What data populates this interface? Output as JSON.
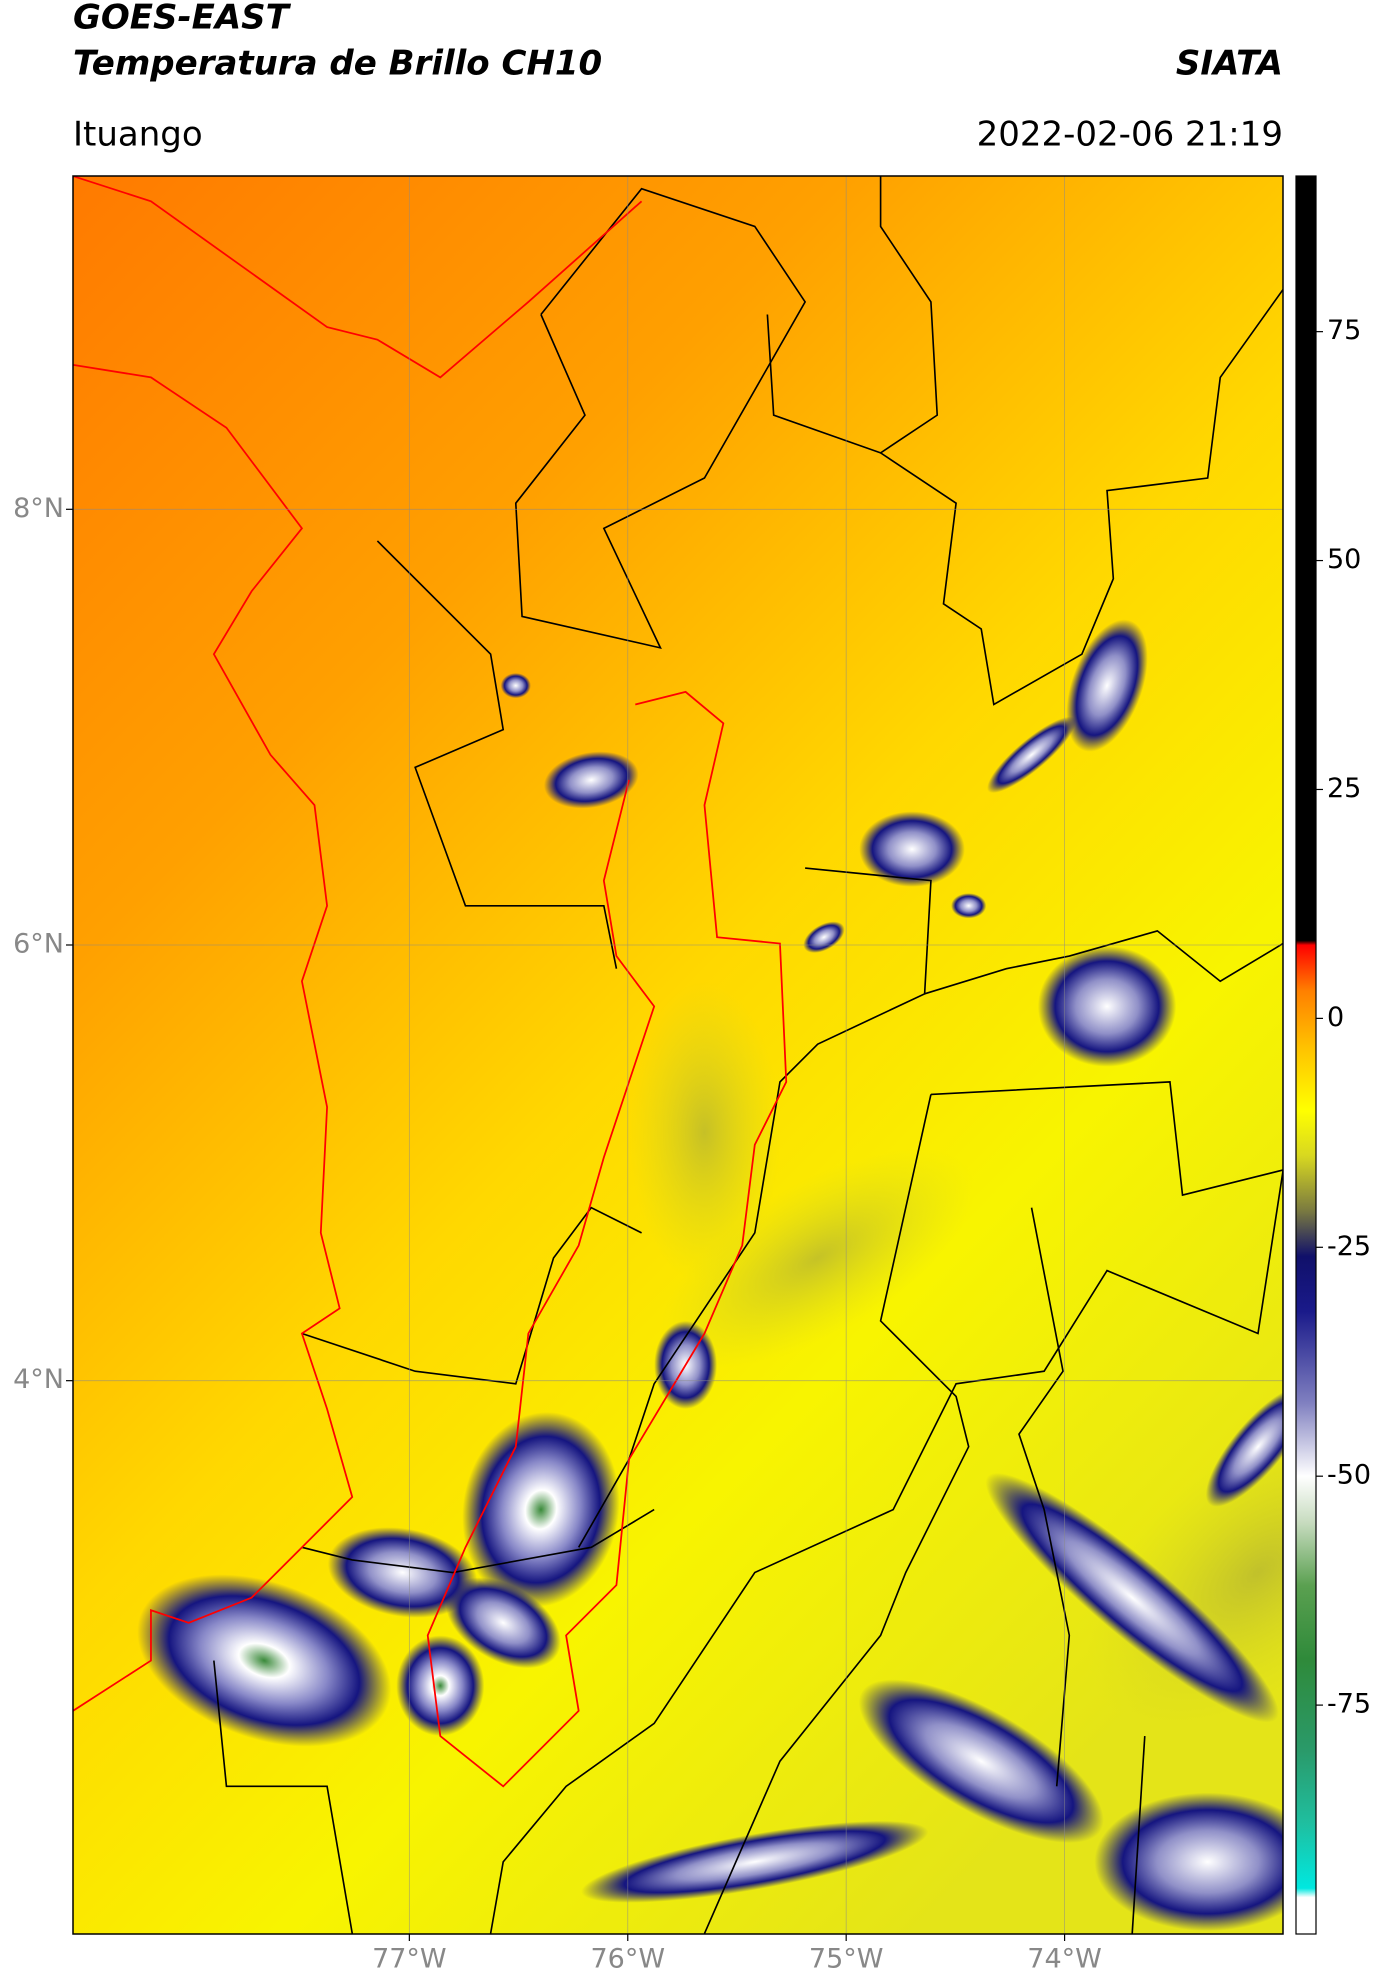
{
  "header": {
    "title": "GOES-EAST",
    "subtitle": "Temperatura de Brillo CH10",
    "brand": "SIATA",
    "location": "Ituango",
    "datetime": "2022-02-06 21:19"
  },
  "map": {
    "xlim": [
      -78.54,
      -73.0
    ],
    "ylim": [
      1.46,
      9.53
    ],
    "xticks": [
      {
        "value": -77,
        "label": "77°W"
      },
      {
        "value": -76,
        "label": "76°W"
      },
      {
        "value": -75,
        "label": "75°W"
      },
      {
        "value": -74,
        "label": "74°W"
      }
    ],
    "yticks": [
      {
        "value": 8,
        "label": "8°N"
      },
      {
        "value": 6,
        "label": "6°N"
      },
      {
        "value": 4,
        "label": "4°N"
      }
    ],
    "grid": true
  },
  "colorbar": {
    "lim": [
      -100,
      92
    ],
    "ticks": [
      75,
      50,
      25,
      0,
      -25,
      -50,
      -75
    ],
    "stops": [
      {
        "value": -100,
        "color": "#ffffff"
      },
      {
        "value": -96,
        "color": "#ffffff"
      },
      {
        "value": -95,
        "color": "#00e8e0"
      },
      {
        "value": -88,
        "color": "#1fbfa0"
      },
      {
        "value": -80,
        "color": "#2a9a6a"
      },
      {
        "value": -70,
        "color": "#2f8a3a"
      },
      {
        "value": -62,
        "color": "#5aa050"
      },
      {
        "value": -55,
        "color": "#c8dcc0"
      },
      {
        "value": -50,
        "color": "#ffffff"
      },
      {
        "value": -42,
        "color": "#8080c0"
      },
      {
        "value": -32,
        "color": "#1a1a8a"
      },
      {
        "value": -26,
        "color": "#10106a"
      },
      {
        "value": -21,
        "color": "#7a7a40"
      },
      {
        "value": -15,
        "color": "#d8d820"
      },
      {
        "value": -10,
        "color": "#ffff00"
      },
      {
        "value": -3,
        "color": "#ffc000"
      },
      {
        "value": 3,
        "color": "#ff8000"
      },
      {
        "value": 8,
        "color": "#ff0000"
      },
      {
        "value": 8.5,
        "color": "#000000"
      },
      {
        "value": 92,
        "color": "#000000"
      }
    ]
  }
}
